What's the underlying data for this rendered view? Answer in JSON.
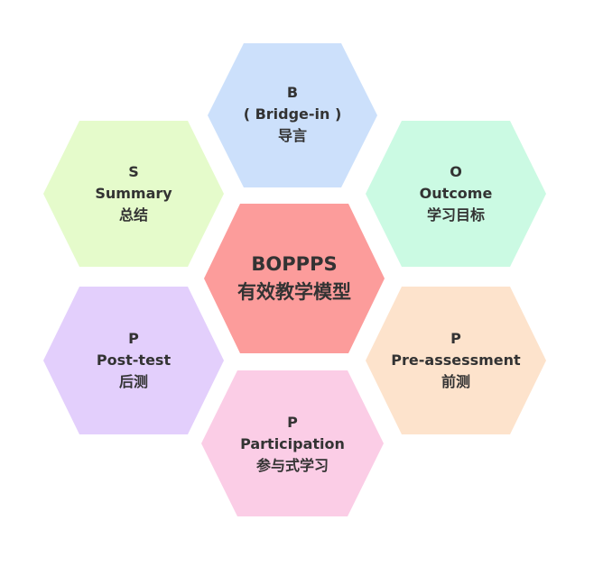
{
  "hexagons": {
    "top": {
      "lines": [
        "B",
        "( Bridge-in )",
        "导言"
      ],
      "color": "#cce0fb"
    },
    "ur": {
      "lines": [
        "O",
        "Outcome",
        "学习目标"
      ],
      "color": "#cbfae3"
    },
    "lr": {
      "lines": [
        "P",
        "Pre-assessment",
        "前测"
      ],
      "color": "#fde3cc"
    },
    "bottom": {
      "lines": [
        "P",
        "Participation",
        "参与式学习"
      ],
      "color": "#fbcde6"
    },
    "ll": {
      "lines": [
        "P",
        "Post-test",
        "后测"
      ],
      "color": "#e3cffc"
    },
    "ul": {
      "lines": [
        "S",
        "Summary",
        "总结"
      ],
      "color": "#e5fbcb"
    },
    "center": {
      "lines": [
        "BOPPPS",
        "有效教学模型"
      ],
      "color": "#fc9c9b"
    }
  }
}
